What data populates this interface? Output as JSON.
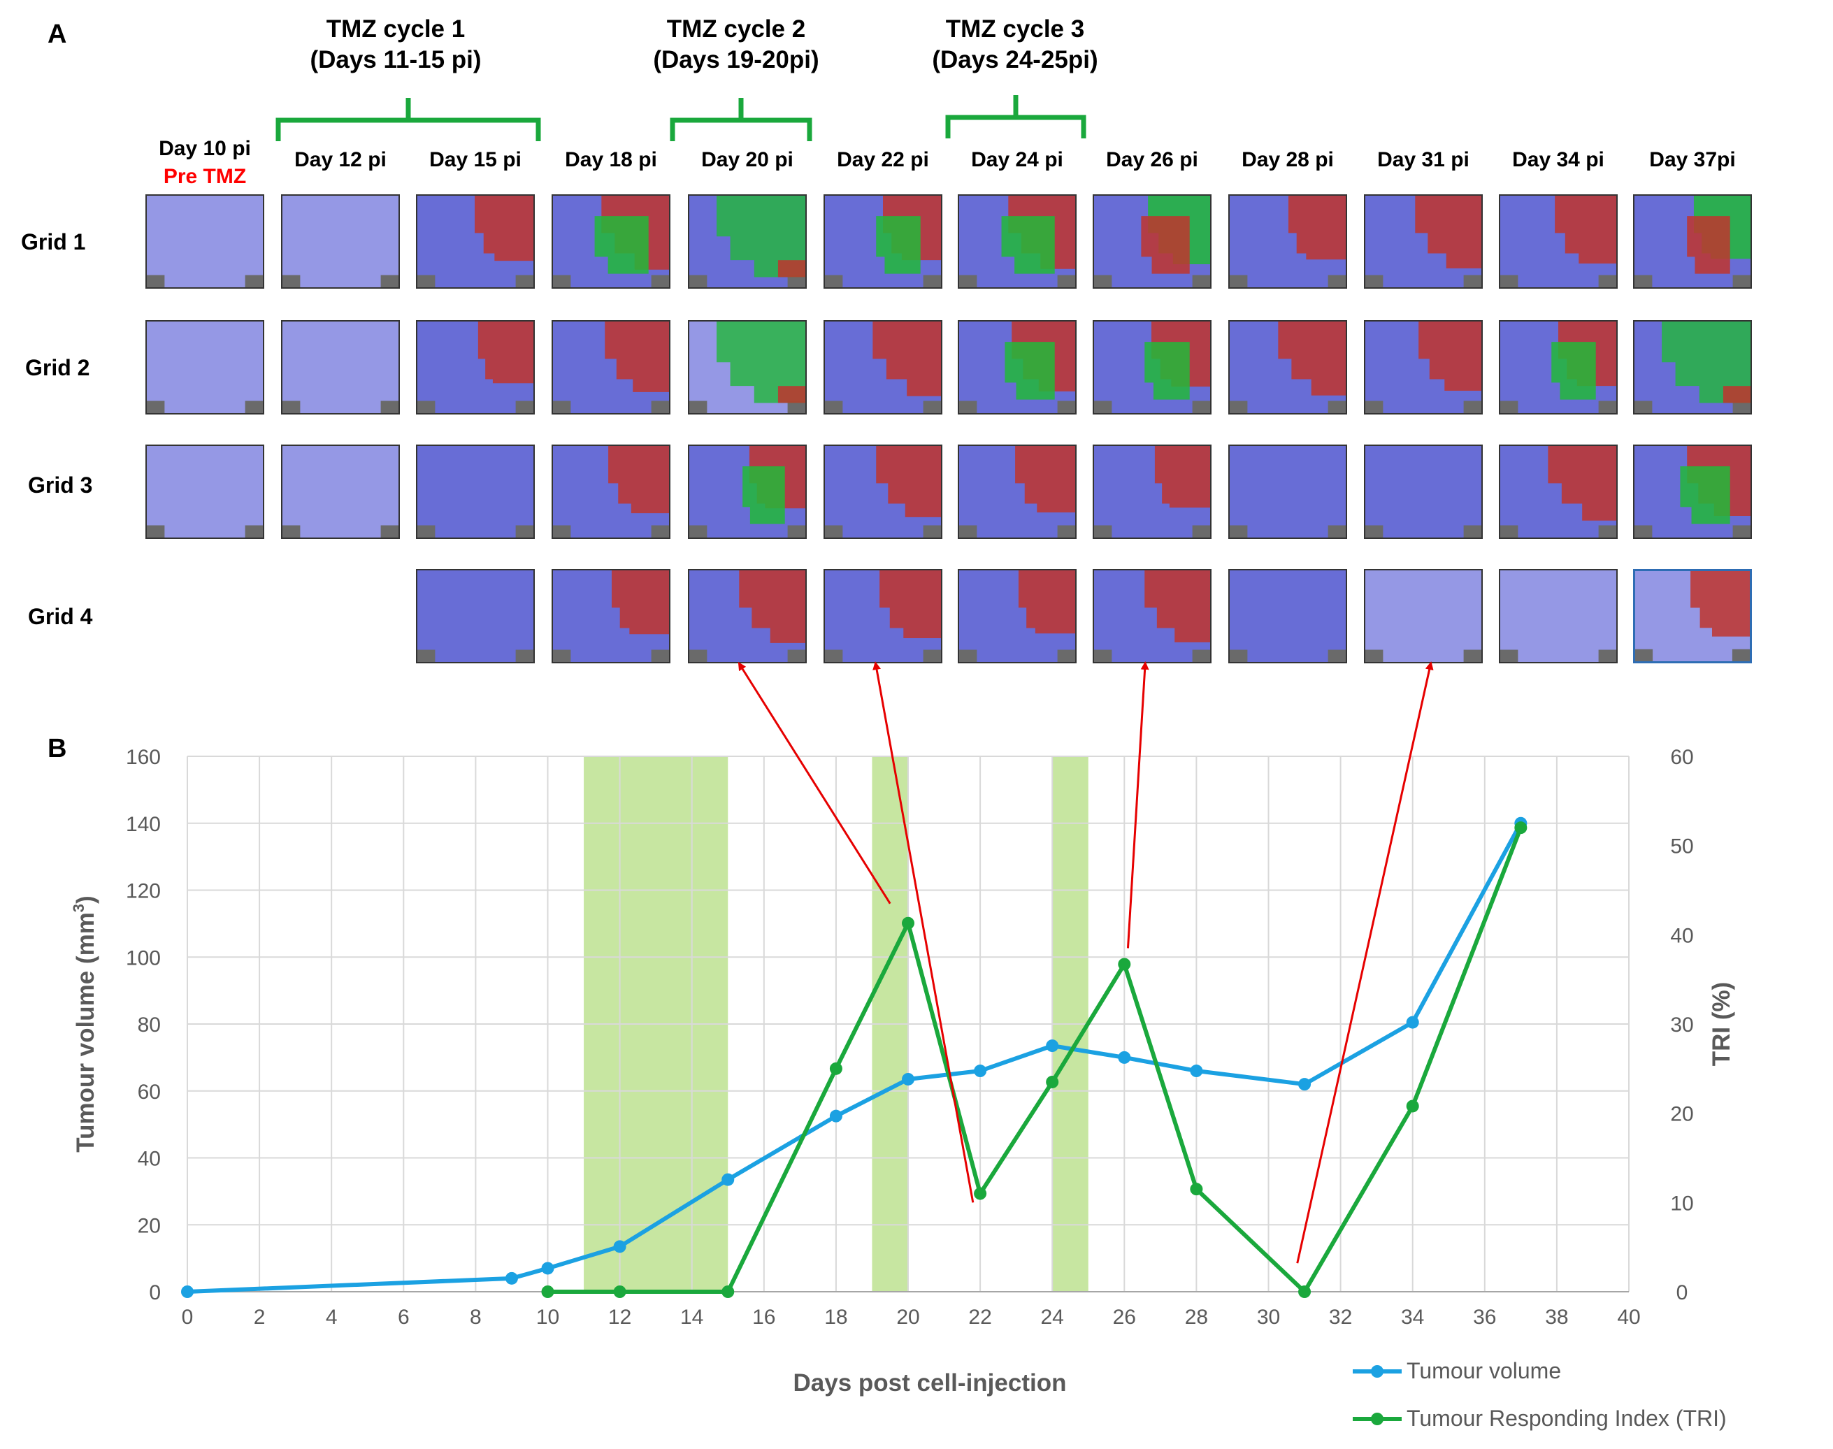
{
  "panel_a": {
    "letter": "A",
    "cycles": [
      {
        "label": "TMZ cycle 1\n(Days 11-15 pi)"
      },
      {
        "label": "TMZ cycle 2\n(Days 19-20pi)"
      },
      {
        "label": "TMZ cycle 3\n(Days 24-25pi)"
      }
    ],
    "days": [
      "Day 10 pi",
      "Day 12 pi",
      "Day 15 pi",
      "Day 18 pi",
      "Day 20 pi",
      "Day 22 pi",
      "Day 24 pi",
      "Day 26 pi",
      "Day 28 pi",
      "Day 31 pi",
      "Day 34 pi",
      "Day 37pi"
    ],
    "pre_tmz": "Pre TMZ",
    "grids": [
      "Grid 1",
      "Grid 2",
      "Grid 3",
      "Grid 4"
    ],
    "tile_colors": {
      "blue": "#3a3fbf",
      "red": "#c0352e",
      "green": "#22b83a",
      "grey": "#6a6a6a"
    }
  },
  "panel_b": {
    "letter": "B"
  },
  "chart_data": {
    "type": "line",
    "xlabel": "Days post cell-injection",
    "ylabel": "Tumour volume (mm",
    "ylabel_sup": "3",
    "ylabel_end": ")",
    "y2label": "TRI (%)",
    "xlim": [
      0,
      40
    ],
    "ylim": [
      0,
      160
    ],
    "y2lim": [
      0,
      60
    ],
    "x_ticks": [
      "0",
      "2",
      "4",
      "6",
      "8",
      "10",
      "12",
      "14",
      "16",
      "18",
      "20",
      "22",
      "24",
      "26",
      "28",
      "30",
      "32",
      "34",
      "36",
      "38",
      "40"
    ],
    "y_ticks": [
      "0",
      "20",
      "40",
      "60",
      "80",
      "100",
      "120",
      "140",
      "160"
    ],
    "y2_ticks": [
      "0",
      "10",
      "20",
      "30",
      "40",
      "50",
      "60"
    ],
    "grid": true,
    "legend_position": "bottom-right",
    "treatment_periods": [
      {
        "start": 11,
        "end": 15,
        "label": "TMZ cycle 1"
      },
      {
        "start": 19,
        "end": 20,
        "label": "TMZ cycle 2"
      },
      {
        "start": 24,
        "end": 25,
        "label": "TMZ cycle 3"
      }
    ],
    "series": [
      {
        "name": "Tumour volume",
        "axis": "left",
        "color": "#1ba1e2",
        "x": [
          0,
          9,
          10,
          12,
          15,
          18,
          20,
          22,
          24,
          26,
          28,
          31,
          34,
          37
        ],
        "values": [
          0,
          4,
          7,
          13.5,
          33.5,
          52.5,
          63.5,
          66,
          73.5,
          70,
          66,
          62,
          80.5,
          140
        ]
      },
      {
        "name": "Tumour Responding Index (TRI)",
        "axis": "right",
        "color": "#1aa83c",
        "x": [
          10,
          12,
          15,
          18,
          20,
          22,
          24,
          26,
          28,
          31,
          34,
          37
        ],
        "values": [
          0,
          0,
          0,
          25,
          41.3,
          11,
          23.5,
          36.7,
          11.5,
          0,
          20.8,
          52
        ]
      }
    ],
    "annotations": [
      {
        "type": "arrow",
        "from_x": 19.5,
        "from_y2": 43.5,
        "to_day": "Day 20 pi",
        "color": "#e60000"
      },
      {
        "type": "arrow",
        "from_x": 21.8,
        "from_y2": 10,
        "to_day": "Day 22 pi",
        "color": "#e60000"
      },
      {
        "type": "arrow",
        "from_x": 26.1,
        "from_y2": 38.5,
        "to_day": "Day 26 pi",
        "color": "#e60000"
      },
      {
        "type": "arrow",
        "from_x": 30.8,
        "from_y2": 3.2,
        "to_day": "Day 31 pi",
        "color": "#e60000"
      }
    ]
  }
}
